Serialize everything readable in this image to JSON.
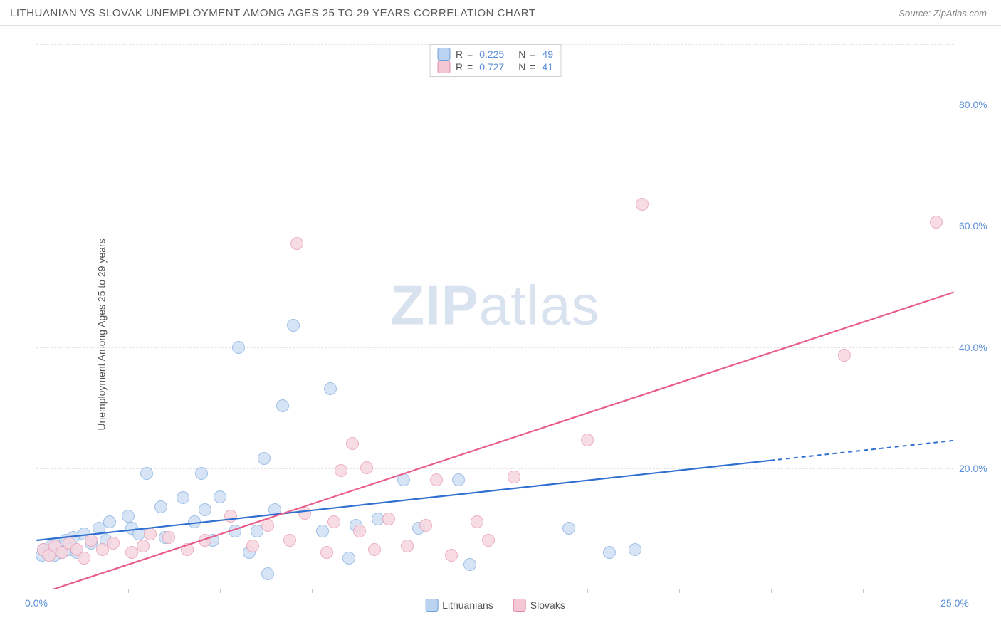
{
  "header": {
    "title": "LITHUANIAN VS SLOVAK UNEMPLOYMENT AMONG AGES 25 TO 29 YEARS CORRELATION CHART",
    "source": "Source: ZipAtlas.com"
  },
  "chart": {
    "type": "scatter",
    "ylabel": "Unemployment Among Ages 25 to 29 years",
    "watermark_zip": "ZIP",
    "watermark_atlas": "atlas",
    "xlim": [
      0,
      25
    ],
    "ylim": [
      0,
      90
    ],
    "x_ticks": [
      0.0,
      25.0
    ],
    "x_tick_labels": [
      "0.0%",
      "25.0%"
    ],
    "x_minor_ticks": [
      2.5,
      5.0,
      7.5,
      10.0,
      12.5,
      15.0,
      17.5,
      20.0,
      22.5
    ],
    "y_ticks": [
      20.0,
      40.0,
      60.0,
      80.0
    ],
    "y_tick_labels": [
      "20.0%",
      "40.0%",
      "60.0%",
      "80.0%"
    ],
    "grid_color": "#e4e4e4",
    "axis_color": "#c8c8c8",
    "background_color": "#ffffff",
    "tick_label_color": "#5b8fd8",
    "label_fontsize": 14,
    "title_fontsize": 15,
    "point_radius": 9,
    "series": [
      {
        "name": "Lithuanians",
        "fill": "#cfe0f4",
        "stroke": "#8fb6e4",
        "swatch_fill": "#b9d3f0",
        "swatch_stroke": "#6f9fd8",
        "line_color": "#2f6fd0",
        "R": "0.225",
        "N": "49",
        "regression": {
          "x1": 0,
          "y1": 8.0,
          "x2": 25,
          "y2": 24.5,
          "solid_until_x": 20.0
        },
        "points": [
          [
            0.15,
            5.5
          ],
          [
            0.2,
            6.5
          ],
          [
            0.3,
            6.0
          ],
          [
            0.4,
            7.0
          ],
          [
            0.5,
            5.5
          ],
          [
            0.6,
            7.5
          ],
          [
            0.7,
            6.0
          ],
          [
            0.8,
            8.0
          ],
          [
            0.9,
            6.5
          ],
          [
            1.0,
            8.5
          ],
          [
            1.1,
            6.0
          ],
          [
            1.3,
            9.0
          ],
          [
            1.5,
            7.5
          ],
          [
            1.7,
            10.0
          ],
          [
            1.9,
            8.0
          ],
          [
            2.0,
            11.0
          ],
          [
            2.5,
            12.0
          ],
          [
            2.6,
            10.0
          ],
          [
            2.8,
            9.0
          ],
          [
            3.0,
            19.0
          ],
          [
            3.4,
            13.5
          ],
          [
            3.5,
            8.5
          ],
          [
            4.0,
            15.0
          ],
          [
            4.3,
            11.0
          ],
          [
            4.5,
            19.0
          ],
          [
            4.6,
            13.0
          ],
          [
            4.8,
            8.0
          ],
          [
            5.0,
            15.2
          ],
          [
            5.4,
            9.5
          ],
          [
            5.5,
            39.8
          ],
          [
            5.8,
            6.0
          ],
          [
            6.0,
            9.5
          ],
          [
            6.2,
            21.5
          ],
          [
            6.3,
            2.5
          ],
          [
            6.5,
            13.0
          ],
          [
            6.7,
            30.2
          ],
          [
            7.0,
            43.5
          ],
          [
            7.8,
            9.5
          ],
          [
            8.0,
            33.0
          ],
          [
            8.5,
            5.0
          ],
          [
            8.7,
            10.5
          ],
          [
            9.3,
            11.5
          ],
          [
            10.0,
            18.0
          ],
          [
            10.4,
            10.0
          ],
          [
            11.5,
            18.0
          ],
          [
            11.8,
            4.0
          ],
          [
            14.5,
            10.0
          ],
          [
            15.6,
            6.0
          ],
          [
            16.3,
            6.5
          ]
        ]
      },
      {
        "name": "Slovaks",
        "fill": "#f6d7e0",
        "stroke": "#e9a2b8",
        "swatch_fill": "#f3c7d4",
        "swatch_stroke": "#e389a6",
        "line_color": "#e85d8a",
        "R": "0.727",
        "N": "41",
        "regression": {
          "x1": 0,
          "y1": -1.0,
          "x2": 25,
          "y2": 49.0,
          "solid_until_x": 25.0
        },
        "points": [
          [
            0.2,
            6.5
          ],
          [
            0.35,
            5.5
          ],
          [
            0.5,
            7.0
          ],
          [
            0.7,
            6.0
          ],
          [
            0.9,
            7.5
          ],
          [
            1.1,
            6.5
          ],
          [
            1.3,
            5.0
          ],
          [
            1.5,
            8.0
          ],
          [
            1.8,
            6.5
          ],
          [
            2.1,
            7.5
          ],
          [
            2.6,
            6.0
          ],
          [
            2.9,
            7.0
          ],
          [
            3.1,
            9.0
          ],
          [
            3.6,
            8.5
          ],
          [
            4.1,
            6.5
          ],
          [
            4.6,
            8.0
          ],
          [
            5.3,
            12.0
          ],
          [
            5.9,
            7.0
          ],
          [
            6.3,
            10.5
          ],
          [
            6.9,
            8.0
          ],
          [
            7.1,
            57.0
          ],
          [
            7.3,
            12.5
          ],
          [
            7.9,
            6.0
          ],
          [
            8.1,
            11.0
          ],
          [
            8.3,
            19.5
          ],
          [
            8.6,
            24.0
          ],
          [
            8.8,
            9.5
          ],
          [
            9.0,
            20.0
          ],
          [
            9.2,
            6.5
          ],
          [
            9.6,
            11.5
          ],
          [
            10.1,
            7.0
          ],
          [
            10.6,
            10.5
          ],
          [
            10.9,
            18.0
          ],
          [
            11.3,
            5.5
          ],
          [
            12.0,
            11.0
          ],
          [
            12.3,
            8.0
          ],
          [
            15.0,
            24.5
          ],
          [
            16.5,
            63.5
          ],
          [
            22.0,
            38.5
          ],
          [
            24.5,
            60.5
          ],
          [
            13.0,
            18.5
          ]
        ]
      }
    ],
    "legend_bottom": [
      {
        "label": "Lithuanians",
        "series_ref": 0
      },
      {
        "label": "Slovaks",
        "series_ref": 1
      }
    ]
  }
}
